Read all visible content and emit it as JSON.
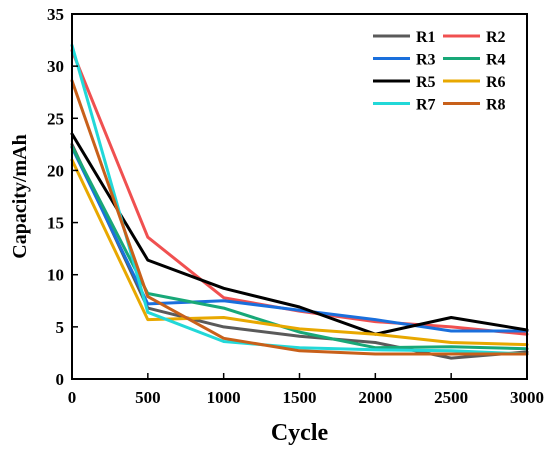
{
  "chart_data": {
    "type": "line",
    "title": "",
    "xlabel": "Cycle",
    "ylabel": "Capacity/mAh",
    "xlim": [
      0,
      3000
    ],
    "ylim": [
      0,
      35
    ],
    "x_ticks": [
      "0",
      "500",
      "1000",
      "1500",
      "2000",
      "2500",
      "3000"
    ],
    "y_ticks": [
      "0",
      "5",
      "10",
      "15",
      "20",
      "25",
      "30",
      "35"
    ],
    "grid": false,
    "legend_position": "top-right",
    "x": [
      0,
      500,
      1000,
      1500,
      2000,
      2500,
      3000
    ],
    "series": [
      {
        "name": "R1",
        "color": "#5a5a5a",
        "values": [
          22.5,
          6.8,
          5.0,
          4.1,
          3.5,
          2.0,
          2.6
        ]
      },
      {
        "name": "R2",
        "color": "#f05050",
        "values": [
          31.5,
          13.6,
          7.8,
          6.5,
          5.5,
          5.0,
          4.3
        ]
      },
      {
        "name": "R3",
        "color": "#1a6fdc",
        "values": [
          22.2,
          7.2,
          7.5,
          6.6,
          5.7,
          4.6,
          4.6
        ]
      },
      {
        "name": "R4",
        "color": "#18a878",
        "values": [
          22.3,
          8.2,
          6.8,
          4.5,
          3.0,
          3.1,
          2.9
        ]
      },
      {
        "name": "R5",
        "color": "#000000",
        "values": [
          23.5,
          11.4,
          8.7,
          6.9,
          4.3,
          5.9,
          4.7
        ]
      },
      {
        "name": "R6",
        "color": "#e8a800",
        "values": [
          21.0,
          5.7,
          5.9,
          4.8,
          4.3,
          3.5,
          3.3
        ]
      },
      {
        "name": "R7",
        "color": "#22d8d8",
        "values": [
          32.0,
          6.4,
          3.6,
          3.0,
          2.8,
          2.7,
          2.4
        ]
      },
      {
        "name": "R8",
        "color": "#c8601a",
        "values": [
          28.6,
          7.9,
          3.9,
          2.7,
          2.4,
          2.4,
          2.4
        ]
      }
    ]
  }
}
